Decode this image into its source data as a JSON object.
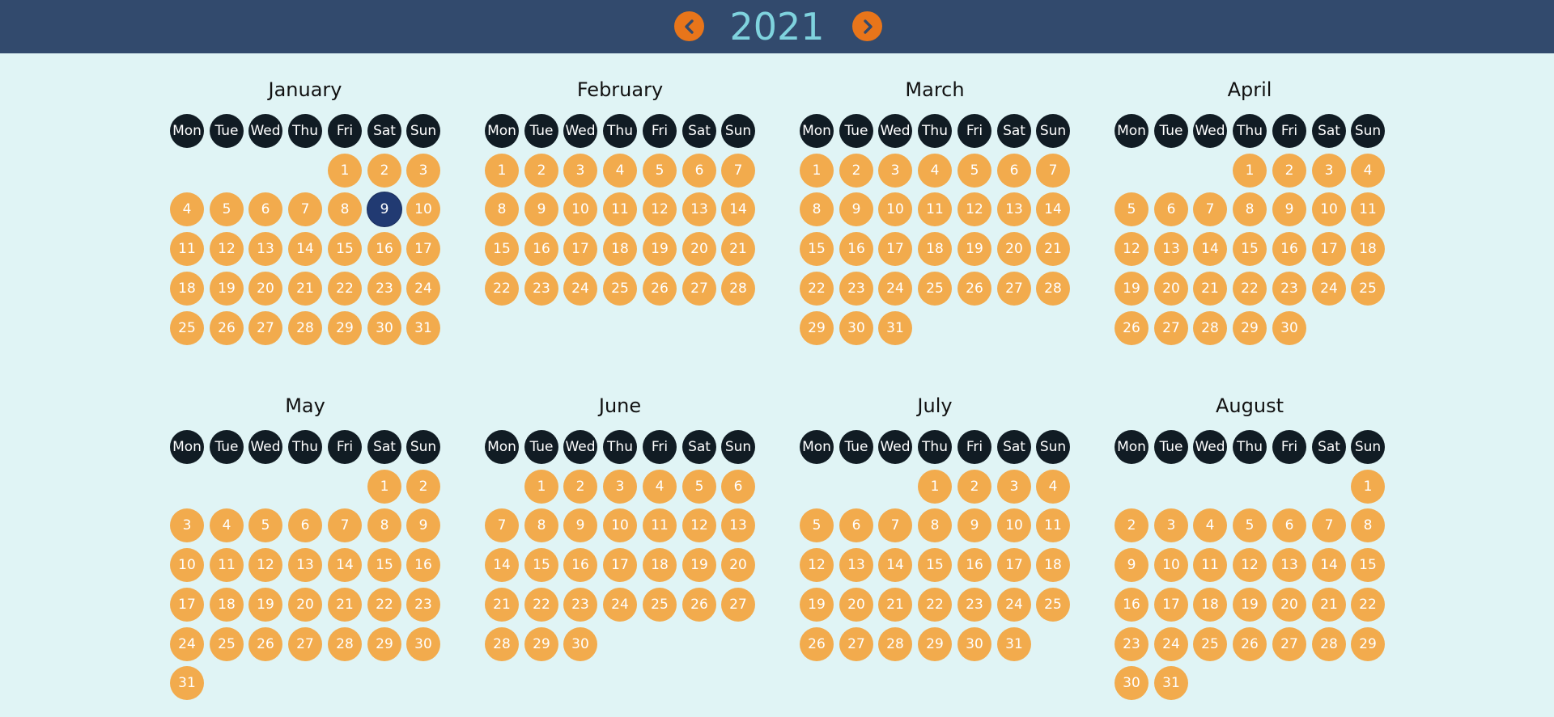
{
  "header": {
    "year": "2021",
    "prev_icon": "chevron-left-icon",
    "next_icon": "chevron-right-icon"
  },
  "weekdays": [
    "Mon",
    "Tue",
    "Wed",
    "Thu",
    "Fri",
    "Sat",
    "Sun"
  ],
  "selected": {
    "month": "January",
    "day": 9
  },
  "colors": {
    "header_bg": "#324a6d",
    "year_text": "#7fd3de",
    "nav_button": "#e8751a",
    "page_bg": "#e0f4f5",
    "weekday_bg": "#111c24",
    "day_bg": "#f2ab4d",
    "selected_bg": "#213a72"
  },
  "months": [
    {
      "name": "January",
      "start_offset": 4,
      "days": 31
    },
    {
      "name": "February",
      "start_offset": 0,
      "days": 28
    },
    {
      "name": "March",
      "start_offset": 0,
      "days": 31
    },
    {
      "name": "April",
      "start_offset": 3,
      "days": 30
    },
    {
      "name": "May",
      "start_offset": 5,
      "days": 31
    },
    {
      "name": "June",
      "start_offset": 1,
      "days": 30
    },
    {
      "name": "July",
      "start_offset": 3,
      "days": 31
    },
    {
      "name": "August",
      "start_offset": 6,
      "days": 31
    }
  ]
}
